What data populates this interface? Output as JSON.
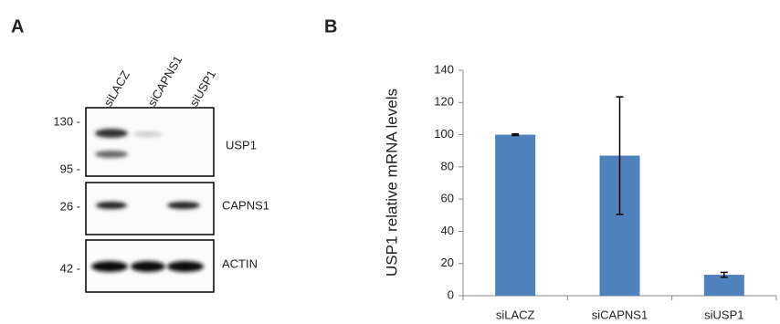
{
  "panel_a": {
    "panel_label": "A",
    "lanes": [
      "siLACZ",
      "siCAPNS1",
      "siUSP1"
    ],
    "markers": [
      "130 -",
      "95 -",
      "26 -",
      "42 -"
    ],
    "blots": [
      "USP1",
      "CAPNS1",
      "ACTIN"
    ]
  },
  "chart_data": {
    "type": "bar",
    "panel_label": "B",
    "y_label": "USP1 relative mRNA levels",
    "categories": [
      "siLACZ",
      "siCAPNS1",
      "siUSP1"
    ],
    "values": [
      100,
      87,
      13
    ],
    "errors": [
      0.5,
      36.5,
      1.5
    ],
    "color": "#4f81bd",
    "ylim": [
      0,
      140
    ],
    "yticks": [
      0,
      20,
      40,
      60,
      80,
      100,
      120,
      140
    ]
  }
}
